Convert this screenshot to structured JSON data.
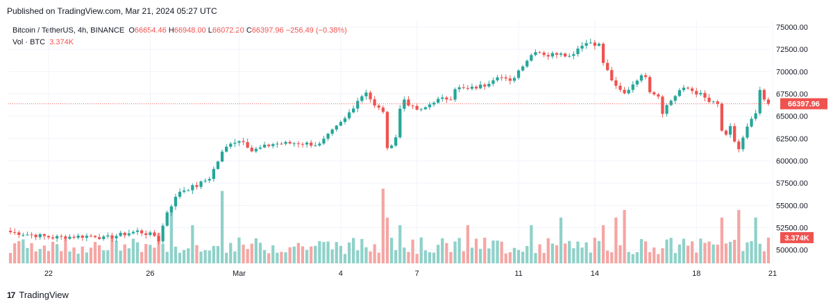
{
  "header": {
    "published": "Published on TradingView.com, Mar 21, 2024 05:27 UTC"
  },
  "legend": {
    "symbol": "Bitcoin / TetherUS, 4h, BINANCE",
    "o_label": "O",
    "o_value": "66654.46",
    "h_label": "H",
    "h_value": "66948.00",
    "l_label": "L",
    "l_value": "66072.20",
    "c_label": "C",
    "c_value": "66397.96",
    "change": "−256.49 (−0.38%)",
    "vol_label": "Vol · BTC",
    "vol_value": "3.374K"
  },
  "footer": {
    "brand": "TradingView",
    "logo": "17"
  },
  "colors": {
    "up": "#26a69a",
    "down": "#ef5350",
    "up_vol": "#8fd1c9",
    "down_vol": "#f5a6a4",
    "grid": "#f0f3fa",
    "text": "#131722"
  },
  "chart_data": {
    "type": "candlestick",
    "symbol": "BTCUSDT",
    "interval": "4h",
    "price_axis": {
      "min": 48500,
      "max": 75700,
      "ticks": [
        75000,
        72500,
        70000,
        67500,
        65000,
        62500,
        60000,
        57500,
        55000,
        52500,
        50000
      ],
      "tick_labels": [
        "75000.00",
        "72500.00",
        "70000.00",
        "67500.00",
        "65000.00",
        "62500.00",
        "60000.00",
        "57500.00",
        "55000.00",
        "52500.00",
        "50000.00"
      ]
    },
    "time_axis": {
      "labels": [
        {
          "text": "22",
          "index": 9
        },
        {
          "text": "26",
          "index": 33
        },
        {
          "text": "Mar",
          "index": 54
        },
        {
          "text": "4",
          "index": 78
        },
        {
          "text": "7",
          "index": 96
        },
        {
          "text": "11",
          "index": 120
        },
        {
          "text": "14",
          "index": 138
        },
        {
          "text": "18",
          "index": 162
        },
        {
          "text": "21",
          "index": 180
        }
      ]
    },
    "last_price": 66397.96,
    "last_price_label": "66397.96",
    "last_volume": 3.374,
    "last_volume_label": "3.374K",
    "volume_max": 10,
    "close_anchors": [
      [
        0,
        52000
      ],
      [
        10,
        51400
      ],
      [
        20,
        51600
      ],
      [
        22,
        51300
      ],
      [
        30,
        52100
      ],
      [
        34,
        51600
      ],
      [
        35,
        51100
      ],
      [
        37,
        54300
      ],
      [
        40,
        56600
      ],
      [
        44,
        57200
      ],
      [
        47,
        58100
      ],
      [
        50,
        60900
      ],
      [
        52,
        62100
      ],
      [
        55,
        62300
      ],
      [
        57,
        61100
      ],
      [
        62,
        61900
      ],
      [
        68,
        62000
      ],
      [
        73,
        61800
      ],
      [
        76,
        63300
      ],
      [
        79,
        64700
      ],
      [
        82,
        66800
      ],
      [
        84,
        67800
      ],
      [
        86,
        66100
      ],
      [
        88,
        65600
      ],
      [
        89,
        61200
      ],
      [
        91,
        62700
      ],
      [
        92,
        65800
      ],
      [
        93,
        66900
      ],
      [
        95,
        65900
      ],
      [
        97,
        65600
      ],
      [
        100,
        66700
      ],
      [
        104,
        67100
      ],
      [
        105,
        68200
      ],
      [
        108,
        68000
      ],
      [
        112,
        68500
      ],
      [
        115,
        69600
      ],
      [
        118,
        68800
      ],
      [
        121,
        70800
      ],
      [
        124,
        72400
      ],
      [
        127,
        71800
      ],
      [
        130,
        72200
      ],
      [
        132,
        71700
      ],
      [
        135,
        73100
      ],
      [
        137,
        73300
      ],
      [
        139,
        73000
      ],
      [
        140,
        71000
      ],
      [
        142,
        69100
      ],
      [
        143,
        68200
      ],
      [
        145,
        67500
      ],
      [
        148,
        69200
      ],
      [
        150,
        69600
      ],
      [
        151,
        67900
      ],
      [
        153,
        67300
      ],
      [
        154,
        65500
      ],
      [
        155,
        66200
      ],
      [
        158,
        67900
      ],
      [
        160,
        68100
      ],
      [
        163,
        67400
      ],
      [
        165,
        66600
      ],
      [
        167,
        66300
      ],
      [
        168,
        63400
      ],
      [
        169,
        62700
      ],
      [
        170,
        63700
      ],
      [
        171,
        62200
      ],
      [
        172,
        61300
      ],
      [
        174,
        63700
      ],
      [
        176,
        65300
      ],
      [
        177,
        67700
      ],
      [
        178,
        66800
      ],
      [
        179,
        66398
      ]
    ],
    "volume_spikes": [
      [
        35,
        4
      ],
      [
        38,
        7
      ],
      [
        43,
        5
      ],
      [
        50,
        9.5
      ],
      [
        88,
        9.8
      ],
      [
        89,
        6
      ],
      [
        92,
        5
      ],
      [
        108,
        5
      ],
      [
        123,
        5
      ],
      [
        130,
        6
      ],
      [
        140,
        5
      ],
      [
        143,
        6
      ],
      [
        145,
        7
      ],
      [
        168,
        6
      ],
      [
        172,
        7
      ],
      [
        176,
        6
      ]
    ]
  }
}
